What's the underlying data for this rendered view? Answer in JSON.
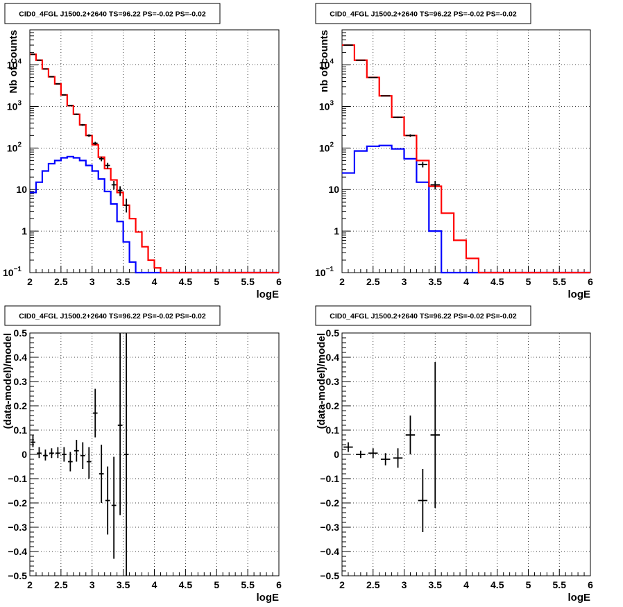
{
  "chart_data": [
    {
      "type": "step-histogram",
      "title": "CID0_4FGL J1500.2+2640 TS=96.22 PS=-0.02 PS=-0.02",
      "xlabel": "logE",
      "ylabel": "Nb of counts",
      "xlim": [
        2,
        6
      ],
      "ylim": [
        0.1,
        70000
      ],
      "yscale": "log",
      "grid": true,
      "x_ticks": [
        "2",
        "2.5",
        "3",
        "3.5",
        "4",
        "4.5",
        "5",
        "5.5",
        "6"
      ],
      "y_ticks": [
        {
          "v": 0.1,
          "t": "10",
          "sup": "−1"
        },
        {
          "v": 1,
          "t": "1",
          "sup": ""
        },
        {
          "v": 10,
          "t": "10",
          "sup": ""
        },
        {
          "v": 100,
          "t": "10",
          "sup": "2"
        },
        {
          "v": 1000,
          "t": "10",
          "sup": "3"
        },
        {
          "v": 10000,
          "t": "10",
          "sup": "4"
        }
      ],
      "bin_edges": [
        2.0,
        2.1,
        2.2,
        2.3,
        2.4,
        2.5,
        2.6,
        2.7,
        2.8,
        2.9,
        3.0,
        3.1,
        3.2,
        3.3,
        3.4,
        3.5,
        3.6,
        3.7,
        3.8,
        3.9,
        4.0,
        4.1,
        4.2,
        4.3,
        4.4,
        4.5,
        4.6,
        4.7,
        4.8,
        4.9,
        5.0,
        5.1,
        5.2,
        5.3,
        5.4,
        5.5,
        5.6,
        5.7,
        5.8,
        5.9,
        6.0
      ],
      "series": [
        {
          "color": "#0000ff",
          "values": [
            8.5,
            15,
            28,
            42,
            50,
            58,
            62,
            58,
            50,
            38,
            28,
            18,
            9,
            4.5,
            1.7,
            0.55,
            0.18,
            0.09,
            0.09,
            0.09,
            0.09,
            0.09,
            0.09,
            0.09,
            0.09,
            0.09,
            0.09,
            0.09,
            0.09,
            0.09,
            0.09,
            0.09,
            0.09,
            0.09,
            0.09,
            0.09,
            0.09,
            0.09,
            0.09,
            0.09
          ]
        },
        {
          "color": "#ff0000",
          "values": [
            18000,
            13000,
            8000,
            5200,
            3500,
            1900,
            1050,
            650,
            360,
            200,
            120,
            60,
            32,
            17,
            8.5,
            4.2,
            2,
            0.95,
            0.42,
            0.2,
            0.13,
            0.09,
            0.09,
            0.09,
            0.09,
            0.09,
            0.09,
            0.09,
            0.09,
            0.09,
            0.09,
            0.09,
            0.09,
            0.09,
            0.09,
            0.09,
            0.09,
            0.09,
            0.09,
            0.09
          ]
        }
      ],
      "points": [
        {
          "x": 2.05,
          "y": 18000,
          "lo": 17800,
          "hi": 18200
        },
        {
          "x": 2.15,
          "y": 13000,
          "lo": 12880,
          "hi": 13120
        },
        {
          "x": 2.25,
          "y": 8000,
          "lo": 7910,
          "hi": 8090
        },
        {
          "x": 2.35,
          "y": 5200,
          "lo": 5130,
          "hi": 5270
        },
        {
          "x": 2.45,
          "y": 3500,
          "lo": 3440,
          "hi": 3560
        },
        {
          "x": 2.55,
          "y": 1900,
          "lo": 1860,
          "hi": 1940
        },
        {
          "x": 2.65,
          "y": 1050,
          "lo": 1020,
          "hi": 1080
        },
        {
          "x": 2.75,
          "y": 650,
          "lo": 625,
          "hi": 675
        },
        {
          "x": 2.85,
          "y": 360,
          "lo": 342,
          "hi": 378
        },
        {
          "x": 2.95,
          "y": 200,
          "lo": 186,
          "hi": 214
        },
        {
          "x": 3.05,
          "y": 130,
          "lo": 119,
          "hi": 141
        },
        {
          "x": 3.15,
          "y": 55,
          "lo": 48,
          "hi": 62
        },
        {
          "x": 3.25,
          "y": 38,
          "lo": 32,
          "hi": 44
        },
        {
          "x": 3.35,
          "y": 13,
          "lo": 10,
          "hi": 16
        },
        {
          "x": 3.45,
          "y": 9.5,
          "lo": 7,
          "hi": 12
        },
        {
          "x": 3.55,
          "y": 4.2,
          "lo": 2.8,
          "hi": 6
        }
      ]
    },
    {
      "type": "step-histogram",
      "title": "CID0_4FGL J1500.2+2640 TS=96.22 PS=-0.02 PS=-0.02",
      "xlabel": "logE",
      "ylabel": "nb of counts",
      "xlim": [
        2,
        6
      ],
      "ylim": [
        0.1,
        70000
      ],
      "yscale": "log",
      "grid": true,
      "x_ticks": [
        "2",
        "2.5",
        "3",
        "3.5",
        "4",
        "4.5",
        "5",
        "5.5",
        "6"
      ],
      "y_ticks": [
        {
          "v": 0.1,
          "t": "10",
          "sup": "−1"
        },
        {
          "v": 1,
          "t": "1",
          "sup": ""
        },
        {
          "v": 10,
          "t": "10",
          "sup": ""
        },
        {
          "v": 100,
          "t": "10",
          "sup": "2"
        },
        {
          "v": 1000,
          "t": "10",
          "sup": "3"
        },
        {
          "v": 10000,
          "t": "10",
          "sup": "4"
        }
      ],
      "bin_edges": [
        2.0,
        2.2,
        2.4,
        2.6,
        2.8,
        3.0,
        3.2,
        3.4,
        3.6,
        3.8,
        4.0,
        4.2,
        4.4,
        4.6,
        4.8,
        5.0,
        5.2,
        5.4,
        5.6,
        5.8,
        6.0
      ],
      "series": [
        {
          "color": "#0000ff",
          "values": [
            25,
            85,
            110,
            115,
            95,
            55,
            15,
            1,
            0.09,
            0.09,
            0.09,
            0.09,
            0.09,
            0.09,
            0.09,
            0.09,
            0.09,
            0.09,
            0.09,
            0.09
          ]
        },
        {
          "color": "#ff0000",
          "values": [
            30000,
            13000,
            5000,
            1800,
            550,
            200,
            50,
            12,
            2.7,
            0.6,
            0.22,
            0.09,
            0.09,
            0.09,
            0.09,
            0.09,
            0.09,
            0.09,
            0.09,
            0.09
          ]
        }
      ],
      "points": [
        {
          "x": 2.1,
          "y": 30000,
          "lo": 29800,
          "hi": 30200
        },
        {
          "x": 2.3,
          "y": 13000,
          "lo": 12880,
          "hi": 13120
        },
        {
          "x": 2.5,
          "y": 5000,
          "lo": 4930,
          "hi": 5070
        },
        {
          "x": 2.7,
          "y": 1800,
          "lo": 1760,
          "hi": 1840
        },
        {
          "x": 2.9,
          "y": 550,
          "lo": 527,
          "hi": 573
        },
        {
          "x": 3.1,
          "y": 200,
          "lo": 186,
          "hi": 214
        },
        {
          "x": 3.3,
          "y": 40,
          "lo": 34,
          "hi": 46
        },
        {
          "x": 3.5,
          "y": 13,
          "lo": 10,
          "hi": 16
        }
      ]
    },
    {
      "type": "error-bars",
      "title": "CID0_4FGL J1500.2+2640 TS=96.22 PS=-0.02 PS=-0.02",
      "xlabel": "logE",
      "ylabel": "(data-model)/model",
      "xlim": [
        2,
        6
      ],
      "ylim": [
        -0.5,
        0.5
      ],
      "yscale": "linear",
      "grid": true,
      "x_ticks": [
        "2",
        "2.5",
        "3",
        "3.5",
        "4",
        "4.5",
        "5",
        "5.5",
        "6"
      ],
      "y_ticks": [
        {
          "v": -0.5,
          "t": "−0.5",
          "sup": ""
        },
        {
          "v": -0.4,
          "t": "−0.4",
          "sup": ""
        },
        {
          "v": -0.3,
          "t": "−0.3",
          "sup": ""
        },
        {
          "v": -0.2,
          "t": "−0.2",
          "sup": ""
        },
        {
          "v": -0.1,
          "t": "−0.1",
          "sup": ""
        },
        {
          "v": 0,
          "t": "0",
          "sup": ""
        },
        {
          "v": 0.1,
          "t": "0.1",
          "sup": ""
        },
        {
          "v": 0.2,
          "t": "0.2",
          "sup": ""
        },
        {
          "v": 0.3,
          "t": "0.3",
          "sup": ""
        },
        {
          "v": 0.4,
          "t": "0.4",
          "sup": ""
        },
        {
          "v": 0.5,
          "t": "0.5",
          "sup": ""
        }
      ],
      "half_width": 0.05,
      "points": [
        {
          "x": 2.05,
          "y": 0.05,
          "lo": 0.03,
          "hi": 0.08
        },
        {
          "x": 2.15,
          "y": 0.005,
          "lo": -0.015,
          "hi": 0.03
        },
        {
          "x": 2.25,
          "y": -0.005,
          "lo": -0.025,
          "hi": 0.02
        },
        {
          "x": 2.35,
          "y": 0.005,
          "lo": -0.015,
          "hi": 0.025
        },
        {
          "x": 2.45,
          "y": 0.005,
          "lo": -0.015,
          "hi": 0.03
        },
        {
          "x": 2.55,
          "y": 0.0,
          "lo": -0.03,
          "hi": 0.03
        },
        {
          "x": 2.65,
          "y": -0.03,
          "lo": -0.07,
          "hi": 0.01
        },
        {
          "x": 2.75,
          "y": 0.015,
          "lo": -0.03,
          "hi": 0.06
        },
        {
          "x": 2.85,
          "y": -0.005,
          "lo": -0.06,
          "hi": 0.05
        },
        {
          "x": 2.95,
          "y": -0.03,
          "lo": -0.1,
          "hi": 0.03
        },
        {
          "x": 3.05,
          "y": 0.17,
          "lo": 0.07,
          "hi": 0.27
        },
        {
          "x": 3.15,
          "y": -0.08,
          "lo": -0.2,
          "hi": 0.04
        },
        {
          "x": 3.25,
          "y": -0.19,
          "lo": -0.33,
          "hi": -0.05
        },
        {
          "x": 3.35,
          "y": -0.21,
          "lo": -0.43,
          "hi": -0.01
        },
        {
          "x": 3.45,
          "y": 0.12,
          "lo": -0.25,
          "hi": 0.5
        },
        {
          "x": 3.55,
          "y": 0.0,
          "lo": -0.5,
          "hi": 0.5
        }
      ]
    },
    {
      "type": "error-bars",
      "title": "CID0_4FGL J1500.2+2640 TS=96.22 PS=-0.02 PS=-0.02",
      "xlabel": "logE",
      "ylabel": "(data-model)/model",
      "xlim": [
        2,
        6
      ],
      "ylim": [
        -0.5,
        0.5
      ],
      "yscale": "linear",
      "grid": true,
      "x_ticks": [
        "2",
        "2.5",
        "3",
        "3.5",
        "4",
        "4.5",
        "5",
        "5.5",
        "6"
      ],
      "y_ticks": [
        {
          "v": -0.5,
          "t": "−0.5",
          "sup": ""
        },
        {
          "v": -0.4,
          "t": "−0.4",
          "sup": ""
        },
        {
          "v": -0.3,
          "t": "−0.3",
          "sup": ""
        },
        {
          "v": -0.2,
          "t": "−0.2",
          "sup": ""
        },
        {
          "v": -0.1,
          "t": "−0.1",
          "sup": ""
        },
        {
          "v": 0,
          "t": "0",
          "sup": ""
        },
        {
          "v": 0.1,
          "t": "0.1",
          "sup": ""
        },
        {
          "v": 0.2,
          "t": "0.2",
          "sup": ""
        },
        {
          "v": 0.3,
          "t": "0.3",
          "sup": ""
        },
        {
          "v": 0.4,
          "t": "0.4",
          "sup": ""
        },
        {
          "v": 0.5,
          "t": "0.5",
          "sup": ""
        }
      ],
      "half_width": 0.1,
      "points": [
        {
          "x": 2.1,
          "y": 0.03,
          "lo": 0.01,
          "hi": 0.05
        },
        {
          "x": 2.3,
          "y": 0.0,
          "lo": -0.015,
          "hi": 0.015
        },
        {
          "x": 2.5,
          "y": 0.005,
          "lo": -0.015,
          "hi": 0.025
        },
        {
          "x": 2.7,
          "y": -0.02,
          "lo": -0.045,
          "hi": 0.005
        },
        {
          "x": 2.9,
          "y": -0.015,
          "lo": -0.055,
          "hi": 0.025
        },
        {
          "x": 3.1,
          "y": 0.08,
          "lo": 0.0,
          "hi": 0.16
        },
        {
          "x": 3.3,
          "y": -0.19,
          "lo": -0.32,
          "hi": -0.06
        },
        {
          "x": 3.5,
          "y": 0.08,
          "lo": -0.22,
          "hi": 0.38
        }
      ]
    }
  ]
}
